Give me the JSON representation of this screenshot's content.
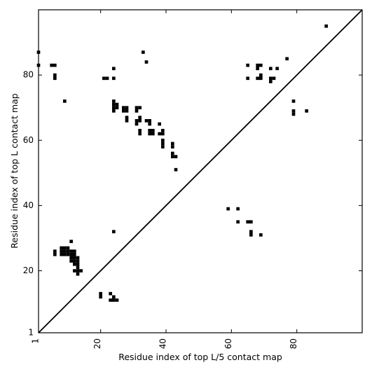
{
  "chart_data": {
    "type": "scatter",
    "xlabel": "Residue index of top L/5 contact map",
    "ylabel": "Residue index of top L contact map",
    "xlim": [
      1,
      100
    ],
    "ylim": [
      1,
      100
    ],
    "x_ticks": [
      1,
      20,
      40,
      60,
      80
    ],
    "y_ticks": [
      1,
      20,
      40,
      60,
      80
    ],
    "diagonal": true,
    "grid": false,
    "marker_color": "#000000",
    "series": [
      {
        "points": [
          [
            1,
            87
          ],
          [
            1,
            83
          ],
          [
            5,
            83
          ],
          [
            6,
            83
          ],
          [
            6,
            80
          ],
          [
            6,
            79
          ],
          [
            9,
            72
          ],
          [
            21,
            79
          ],
          [
            22,
            79
          ],
          [
            24,
            79
          ],
          [
            24,
            82
          ],
          [
            24,
            72
          ],
          [
            24,
            71
          ],
          [
            24,
            70
          ],
          [
            24,
            69
          ],
          [
            25,
            71
          ],
          [
            25,
            70
          ],
          [
            27,
            70
          ],
          [
            27,
            69
          ],
          [
            28,
            70
          ],
          [
            28,
            69
          ],
          [
            28,
            67
          ],
          [
            28,
            66
          ],
          [
            31,
            70
          ],
          [
            31,
            69
          ],
          [
            32,
            70
          ],
          [
            31,
            66
          ],
          [
            31,
            65
          ],
          [
            32,
            67
          ],
          [
            32,
            66
          ],
          [
            32,
            63
          ],
          [
            32,
            62
          ],
          [
            33,
            87
          ],
          [
            34,
            84
          ],
          [
            34,
            66
          ],
          [
            35,
            66
          ],
          [
            35,
            65
          ],
          [
            35,
            63
          ],
          [
            35,
            62
          ],
          [
            36,
            63
          ],
          [
            36,
            62
          ],
          [
            38,
            65
          ],
          [
            38,
            62
          ],
          [
            39,
            63
          ],
          [
            39,
            62
          ],
          [
            39,
            60
          ],
          [
            39,
            59
          ],
          [
            39,
            58
          ],
          [
            42,
            59
          ],
          [
            42,
            58
          ],
          [
            42,
            56
          ],
          [
            42,
            55
          ],
          [
            43,
            55
          ],
          [
            43,
            51
          ],
          [
            24,
            32
          ],
          [
            11,
            29
          ],
          [
            6,
            26
          ],
          [
            6,
            25
          ],
          [
            8,
            27
          ],
          [
            8,
            26
          ],
          [
            8,
            25
          ],
          [
            9,
            27
          ],
          [
            9,
            26
          ],
          [
            9,
            25
          ],
          [
            10,
            27
          ],
          [
            10,
            26
          ],
          [
            10,
            25
          ],
          [
            11,
            26
          ],
          [
            11,
            25
          ],
          [
            11,
            24
          ],
          [
            11,
            23
          ],
          [
            12,
            26
          ],
          [
            12,
            25
          ],
          [
            12,
            24
          ],
          [
            12,
            23
          ],
          [
            12,
            22
          ],
          [
            13,
            24
          ],
          [
            13,
            23
          ],
          [
            13,
            22
          ],
          [
            13,
            21
          ],
          [
            13,
            20
          ],
          [
            12,
            20
          ],
          [
            14,
            20
          ],
          [
            13,
            19
          ],
          [
            20,
            13
          ],
          [
            20,
            12
          ],
          [
            23,
            13
          ],
          [
            23,
            11
          ],
          [
            24,
            12
          ],
          [
            24,
            11
          ],
          [
            25,
            11
          ],
          [
            65,
            83
          ],
          [
            65,
            79
          ],
          [
            68,
            83
          ],
          [
            69,
            83
          ],
          [
            68,
            82
          ],
          [
            68,
            79
          ],
          [
            69,
            80
          ],
          [
            69,
            79
          ],
          [
            72,
            82
          ],
          [
            72,
            79
          ],
          [
            72,
            78
          ],
          [
            73,
            79
          ],
          [
            74,
            82
          ],
          [
            77,
            85
          ],
          [
            79,
            72
          ],
          [
            79,
            69
          ],
          [
            79,
            68
          ],
          [
            83,
            69
          ],
          [
            89,
            95
          ],
          [
            59,
            39
          ],
          [
            62,
            39
          ],
          [
            62,
            35
          ],
          [
            65,
            35
          ],
          [
            66,
            35
          ],
          [
            66,
            32
          ],
          [
            66,
            31
          ],
          [
            69,
            31
          ]
        ]
      }
    ]
  }
}
